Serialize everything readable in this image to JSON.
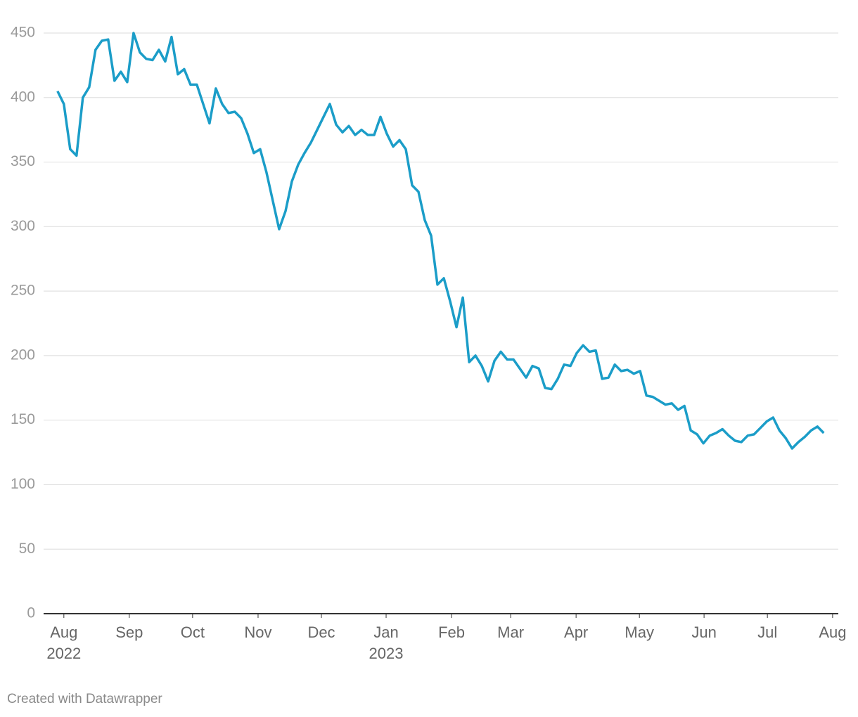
{
  "chart_data": {
    "type": "line",
    "color": "#1b9dc8",
    "values": [
      405,
      395,
      360,
      355,
      400,
      408,
      437,
      444,
      445,
      413,
      420,
      412,
      450,
      435,
      430,
      429,
      437,
      428,
      447,
      418,
      422,
      410,
      410,
      395,
      380,
      407,
      395,
      388,
      389,
      384,
      372,
      357,
      360,
      342,
      320,
      298,
      312,
      335,
      348,
      357,
      365,
      375,
      385,
      395,
      379,
      373,
      378,
      371,
      375,
      371,
      371,
      385,
      372,
      362,
      367,
      360,
      332,
      327,
      305,
      293,
      255,
      260,
      242,
      222,
      245,
      195,
      200,
      192,
      180,
      196,
      203,
      197,
      197,
      190,
      183,
      192,
      190,
      175,
      174,
      182,
      193,
      192,
      202,
      208,
      203,
      204,
      182,
      183,
      193,
      188,
      189,
      186,
      188,
      169,
      168,
      165,
      162,
      163,
      158,
      161,
      142,
      139,
      132,
      138,
      140,
      143,
      138,
      134,
      133,
      138,
      139,
      144,
      149,
      152,
      142,
      136,
      128,
      133,
      137,
      142,
      145,
      140
    ],
    "xlim": [
      -2.2,
      123.3
    ],
    "xticks": [
      {
        "value": 1,
        "label": "Aug\n2022"
      },
      {
        "value": 11.33,
        "label": "Sep"
      },
      {
        "value": 21.33,
        "label": "Oct"
      },
      {
        "value": 31.67,
        "label": "Nov"
      },
      {
        "value": 41.67,
        "label": "Dec"
      },
      {
        "value": 51.89,
        "label": "Jan\n2023"
      },
      {
        "value": 62.22,
        "label": "Feb"
      },
      {
        "value": 71.56,
        "label": "Mar"
      },
      {
        "value": 81.89,
        "label": "Apr"
      },
      {
        "value": 91.89,
        "label": "May"
      },
      {
        "value": 102.1,
        "label": "Jun"
      },
      {
        "value": 112.1,
        "label": "Jul"
      },
      {
        "value": 122.4,
        "label": "Aug"
      }
    ],
    "ylim": [
      0,
      450
    ],
    "yticks": [
      0,
      50,
      100,
      150,
      200,
      250,
      300,
      350,
      400,
      450
    ],
    "grid": true,
    "credit": "Created with Datawrapper"
  }
}
